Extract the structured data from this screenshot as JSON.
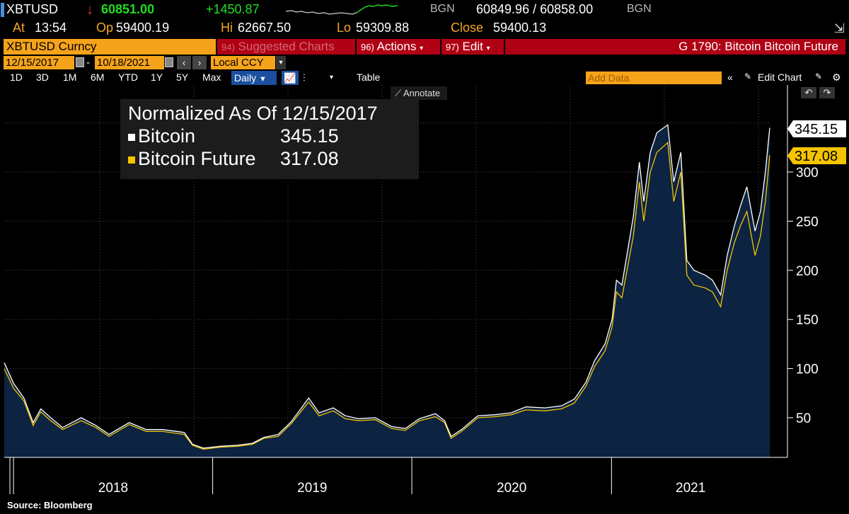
{
  "ticker": {
    "symbol": "XBTUSD",
    "last": "60851.00",
    "change": "+1450.87",
    "source1": "BGN",
    "bid_ask": "60849.96 / 60858.00",
    "source2": "BGN",
    "at_label": "At",
    "at": "13:54",
    "op_label": "Op",
    "op": "59400.19",
    "hi_label": "Hi",
    "hi": "62667.50",
    "lo_label": "Lo",
    "lo": "59309.88",
    "close_label": "Close",
    "close": "59400.13",
    "colors": {
      "up": "#22dd22",
      "down": "#ee3333",
      "label": "#f5a623"
    }
  },
  "security_bar": {
    "security": "XBTUSD Curncy",
    "suggested": "Suggested Charts",
    "suggested_num": "94)",
    "actions_num": "96)",
    "actions": "Actions",
    "edit_num": "97)",
    "edit": "Edit",
    "title": "G 1790: Bitcoin Bitcoin Future"
  },
  "date_bar": {
    "start": "12/15/2017",
    "sep": "-",
    "end": "10/18/2021",
    "currency": "Local CCY"
  },
  "toolbar": {
    "ranges": [
      "1D",
      "3D",
      "1M",
      "6M",
      "YTD",
      "1Y",
      "5Y",
      "Max"
    ],
    "frequency": "Daily",
    "table": "Table",
    "add_data": "Add Data",
    "edit_chart": "Edit Chart",
    "annotate": "Annotate"
  },
  "legend": {
    "title": "Normalized As Of 12/15/2017",
    "items": [
      {
        "name": "Bitcoin",
        "value": "345.15",
        "color": "#ffffff"
      },
      {
        "name": "Bitcoin Future",
        "value": "317.08",
        "color": "#f5c400"
      }
    ]
  },
  "source": "Source: Bloomberg",
  "chart_data": {
    "type": "line",
    "ylim": [
      20,
      360
    ],
    "yticks": [
      50,
      100,
      150,
      200,
      250,
      300
    ],
    "xticks": [
      "2018",
      "2019",
      "2020",
      "2021"
    ],
    "last_labels": [
      "345.15",
      "317.08"
    ],
    "x": [
      "2017-12-15",
      "2018-01-01",
      "2018-01-20",
      "2018-02-06",
      "2018-02-20",
      "2018-03-10",
      "2018-04-01",
      "2018-05-05",
      "2018-06-01",
      "2018-06-25",
      "2018-08-01",
      "2018-09-01",
      "2018-10-01",
      "2018-11-10",
      "2018-11-25",
      "2018-12-15",
      "2019-01-15",
      "2019-02-15",
      "2019-03-15",
      "2019-04-05",
      "2019-05-01",
      "2019-05-25",
      "2019-06-26",
      "2019-07-15",
      "2019-08-10",
      "2019-09-01",
      "2019-09-25",
      "2019-10-26",
      "2019-11-25",
      "2019-12-20",
      "2020-01-15",
      "2020-02-13",
      "2020-03-01",
      "2020-03-13",
      "2020-04-01",
      "2020-05-01",
      "2020-06-01",
      "2020-07-01",
      "2020-07-28",
      "2020-09-01",
      "2020-10-01",
      "2020-10-25",
      "2020-11-15",
      "2020-12-01",
      "2020-12-20",
      "2021-01-02",
      "2021-01-10",
      "2021-01-20",
      "2021-02-10",
      "2021-02-21",
      "2021-03-01",
      "2021-03-13",
      "2021-03-25",
      "2021-04-14",
      "2021-04-25",
      "2021-05-08",
      "2021-05-19",
      "2021-06-01",
      "2021-06-22",
      "2021-07-05",
      "2021-07-20",
      "2021-08-01",
      "2021-08-14",
      "2021-08-25",
      "2021-09-06",
      "2021-09-21",
      "2021-10-01",
      "2021-10-10",
      "2021-10-18"
    ],
    "series": [
      {
        "name": "Bitcoin",
        "values": [
          106,
          85,
          70,
          45,
          59,
          50,
          40,
          50,
          42,
          33,
          45,
          38,
          38,
          35,
          23,
          19,
          21,
          22,
          24,
          30,
          33,
          46,
          70,
          55,
          60,
          52,
          49,
          50,
          41,
          39,
          49,
          54,
          47,
          31,
          38,
          52,
          53,
          55,
          61,
          60,
          62,
          69,
          86,
          108,
          125,
          150,
          190,
          185,
          255,
          310,
          270,
          320,
          340,
          348,
          290,
          320,
          210,
          200,
          195,
          190,
          175,
          215,
          245,
          265,
          285,
          240,
          260,
          300,
          345
        ]
      },
      {
        "name": "Bitcoin Future",
        "values": [
          100,
          80,
          67,
          42,
          56,
          47,
          38,
          47,
          40,
          31,
          43,
          36,
          36,
          33,
          22,
          18,
          20,
          21,
          23,
          29,
          31,
          44,
          66,
          52,
          57,
          49,
          47,
          48,
          39,
          37,
          47,
          51,
          45,
          29,
          36,
          50,
          51,
          53,
          58,
          57,
          59,
          65,
          82,
          102,
          118,
          142,
          178,
          172,
          235,
          290,
          250,
          300,
          320,
          330,
          270,
          300,
          195,
          185,
          182,
          178,
          163,
          200,
          228,
          245,
          260,
          215,
          235,
          270,
          317
        ]
      }
    ]
  }
}
